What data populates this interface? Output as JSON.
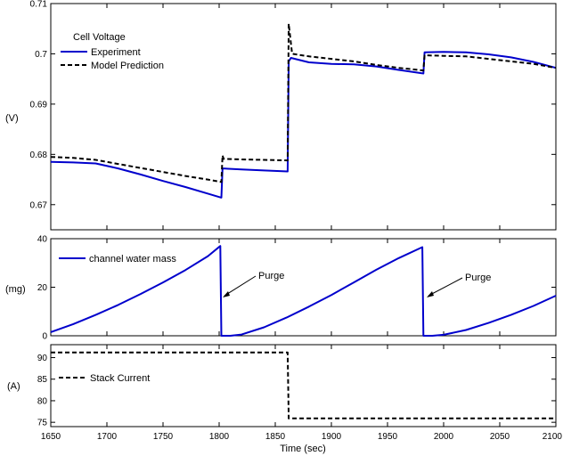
{
  "chart_data": [
    {
      "type": "line",
      "panel": "voltage",
      "ylabel": "(V)",
      "xlim": [
        1650,
        2100
      ],
      "ylim": [
        0.665,
        0.71
      ],
      "yticks": [
        0.67,
        0.68,
        0.69,
        0.7,
        0.71
      ],
      "legend_title": "Cell Voltage",
      "legend_position": "top-left",
      "series": [
        {
          "name": "Experiment",
          "color": "#0000cc",
          "style": "solid",
          "points": [
            [
              1650,
              0.6785
            ],
            [
              1670,
              0.6784
            ],
            [
              1690,
              0.6782
            ],
            [
              1710,
              0.6772
            ],
            [
              1730,
              0.676
            ],
            [
              1750,
              0.6747
            ],
            [
              1770,
              0.6735
            ],
            [
              1790,
              0.6722
            ],
            [
              1802,
              0.6714
            ],
            [
              1803,
              0.6772
            ],
            [
              1820,
              0.677
            ],
            [
              1840,
              0.6768
            ],
            [
              1861,
              0.6766
            ],
            [
              1862,
              0.6985
            ],
            [
              1864,
              0.6992
            ],
            [
              1880,
              0.6983
            ],
            [
              1900,
              0.698
            ],
            [
              1920,
              0.6979
            ],
            [
              1940,
              0.6975
            ],
            [
              1960,
              0.6968
            ],
            [
              1982,
              0.6961
            ],
            [
              1983,
              0.7003
            ],
            [
              2000,
              0.7004
            ],
            [
              2020,
              0.7003
            ],
            [
              2040,
              0.6999
            ],
            [
              2060,
              0.6993
            ],
            [
              2080,
              0.6984
            ],
            [
              2100,
              0.6972
            ]
          ]
        },
        {
          "name": "Model Prediction",
          "color": "#000000",
          "style": "dashed",
          "points": [
            [
              1650,
              0.6795
            ],
            [
              1670,
              0.6793
            ],
            [
              1690,
              0.6789
            ],
            [
              1710,
              0.6781
            ],
            [
              1730,
              0.6773
            ],
            [
              1750,
              0.6765
            ],
            [
              1770,
              0.6757
            ],
            [
              1790,
              0.675
            ],
            [
              1802,
              0.6745
            ],
            [
              1803,
              0.6798
            ],
            [
              1804,
              0.6791
            ],
            [
              1820,
              0.679
            ],
            [
              1840,
              0.6789
            ],
            [
              1861,
              0.6788
            ],
            [
              1862,
              0.706
            ],
            [
              1865,
              0.7
            ],
            [
              1880,
              0.6995
            ],
            [
              1900,
              0.699
            ],
            [
              1920,
              0.6985
            ],
            [
              1940,
              0.6978
            ],
            [
              1960,
              0.6972
            ],
            [
              1982,
              0.6967
            ],
            [
              1983,
              0.6997
            ],
            [
              2000,
              0.6996
            ],
            [
              2020,
              0.6995
            ],
            [
              2040,
              0.699
            ],
            [
              2060,
              0.6985
            ],
            [
              2080,
              0.698
            ],
            [
              2100,
              0.6972
            ]
          ]
        }
      ]
    },
    {
      "type": "line",
      "panel": "water",
      "ylabel": "(mg)",
      "xlim": [
        1650,
        2100
      ],
      "ylim": [
        0,
        40
      ],
      "yticks": [
        0,
        20,
        40
      ],
      "legend_position": "top-left",
      "series": [
        {
          "name": "channel water mass",
          "color": "#0000cc",
          "style": "solid",
          "points": [
            [
              1650,
              1.5
            ],
            [
              1670,
              4.8
            ],
            [
              1690,
              8.6
            ],
            [
              1710,
              12.7
            ],
            [
              1730,
              17.2
            ],
            [
              1750,
              22.0
            ],
            [
              1770,
              27.1
            ],
            [
              1790,
              32.8
            ],
            [
              1801,
              37.0
            ],
            [
              1802,
              0
            ],
            [
              1810,
              0
            ],
            [
              1820,
              0.5
            ],
            [
              1840,
              3.5
            ],
            [
              1860,
              7.5
            ],
            [
              1880,
              12.0
            ],
            [
              1900,
              16.8
            ],
            [
              1920,
              22.0
            ],
            [
              1940,
              27.2
            ],
            [
              1960,
              32.0
            ],
            [
              1981,
              36.5
            ],
            [
              1982,
              0
            ],
            [
              1990,
              0
            ],
            [
              2000,
              0.4
            ],
            [
              2020,
              2.4
            ],
            [
              2040,
              5.3
            ],
            [
              2060,
              8.6
            ],
            [
              2080,
              12.3
            ],
            [
              2100,
              16.5
            ]
          ]
        }
      ],
      "annotations": [
        {
          "text": "Purge",
          "x": 1801,
          "y": 17
        },
        {
          "text": "Purge",
          "x": 1982,
          "y": 17
        }
      ]
    },
    {
      "type": "line",
      "panel": "current",
      "ylabel": "(A)",
      "xlabel": "Time (sec)",
      "xlim": [
        1650,
        2100
      ],
      "ylim": [
        74,
        93
      ],
      "yticks": [
        75,
        80,
        85,
        90
      ],
      "xticks": [
        1650,
        1700,
        1750,
        1800,
        1850,
        1900,
        1950,
        2000,
        2050,
        2100
      ],
      "legend_position": "center-left",
      "series": [
        {
          "name": "Stack Current",
          "color": "#000000",
          "style": "dashed",
          "points": [
            [
              1650,
              91.2
            ],
            [
              1861,
              91.2
            ],
            [
              1862,
              75.9
            ],
            [
              2100,
              75.9
            ]
          ]
        }
      ]
    }
  ]
}
